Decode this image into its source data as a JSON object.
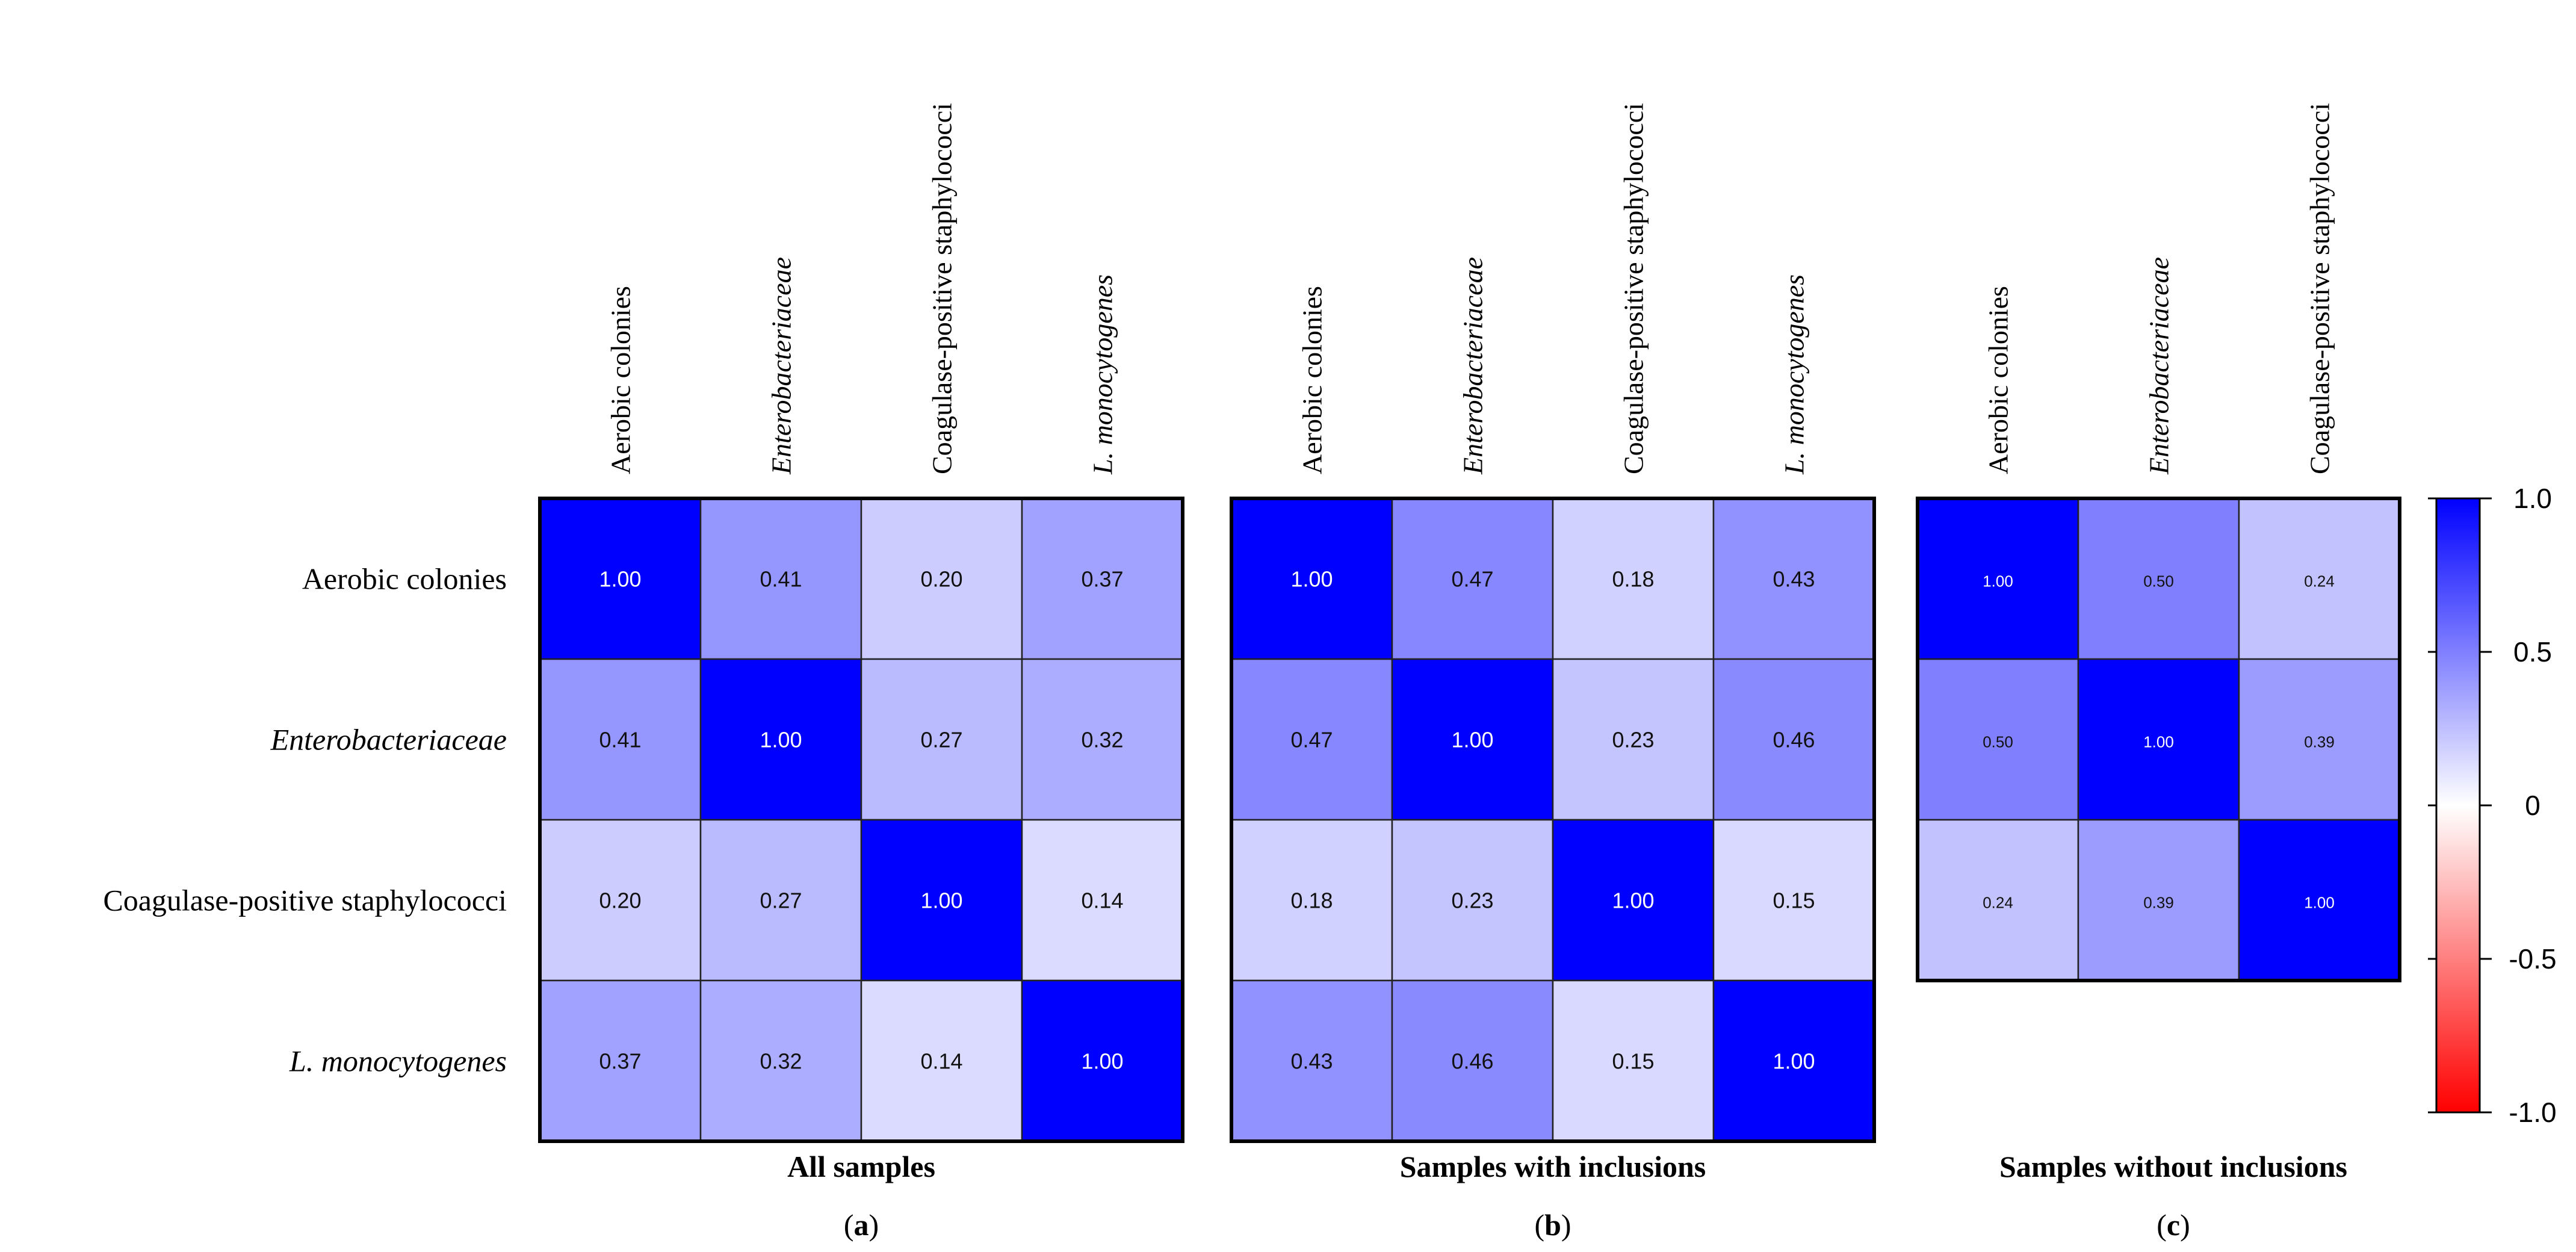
{
  "chart_data": {
    "type": "heatmap",
    "colorbar": {
      "min": -1.0,
      "max": 1.0,
      "ticks": [
        "1.0",
        "0.5",
        "0",
        "-0.5",
        "-1.0"
      ],
      "colors": {
        "low": "#ff0000",
        "mid": "#ffffff",
        "high": "#0000ff"
      }
    },
    "row_labels": [
      {
        "text": "Aerobic colonies",
        "italic": false
      },
      {
        "text": "Enterobacteriaceae",
        "italic": true
      },
      {
        "text": "Coagulase-positive staphylococci",
        "italic": false
      },
      {
        "text": "L. monocytogenes",
        "italic": true
      }
    ],
    "panels": [
      {
        "title": "All samples",
        "tag_letter": "a",
        "columns": [
          {
            "text": "Aerobic colonies",
            "italic": false
          },
          {
            "text": "Enterobacteriaceae",
            "italic": true
          },
          {
            "text": "Coagulase-positive staphylococci",
            "italic": false
          },
          {
            "text": "L. monocytogenes",
            "italic": true
          }
        ],
        "matrix": [
          [
            1.0,
            0.41,
            0.2,
            0.37
          ],
          [
            0.41,
            1.0,
            0.27,
            0.32
          ],
          [
            0.2,
            0.27,
            1.0,
            0.14
          ],
          [
            0.37,
            0.32,
            0.14,
            1.0
          ]
        ]
      },
      {
        "title": "Samples with inclusions",
        "tag_letter": "b",
        "columns": [
          {
            "text": "Aerobic colonies",
            "italic": false
          },
          {
            "text": "Enterobacteriaceae",
            "italic": true
          },
          {
            "text": "Coagulase-positive staphylococci",
            "italic": false
          },
          {
            "text": "L. monocytogenes",
            "italic": true
          }
        ],
        "matrix": [
          [
            1.0,
            0.47,
            0.18,
            0.43
          ],
          [
            0.47,
            1.0,
            0.23,
            0.46
          ],
          [
            0.18,
            0.23,
            1.0,
            0.15
          ],
          [
            0.43,
            0.46,
            0.15,
            1.0
          ]
        ]
      },
      {
        "title": "Samples without inclusions",
        "tag_letter": "c",
        "columns": [
          {
            "text": "Aerobic colonies",
            "italic": false
          },
          {
            "text": "Enterobacteriaceae",
            "italic": true
          },
          {
            "text": "Coagulase-positive staphylococci",
            "italic": false
          }
        ],
        "matrix": [
          [
            1.0,
            0.5,
            0.24
          ],
          [
            0.5,
            1.0,
            0.39
          ],
          [
            0.24,
            0.39,
            1.0
          ]
        ]
      }
    ]
  }
}
